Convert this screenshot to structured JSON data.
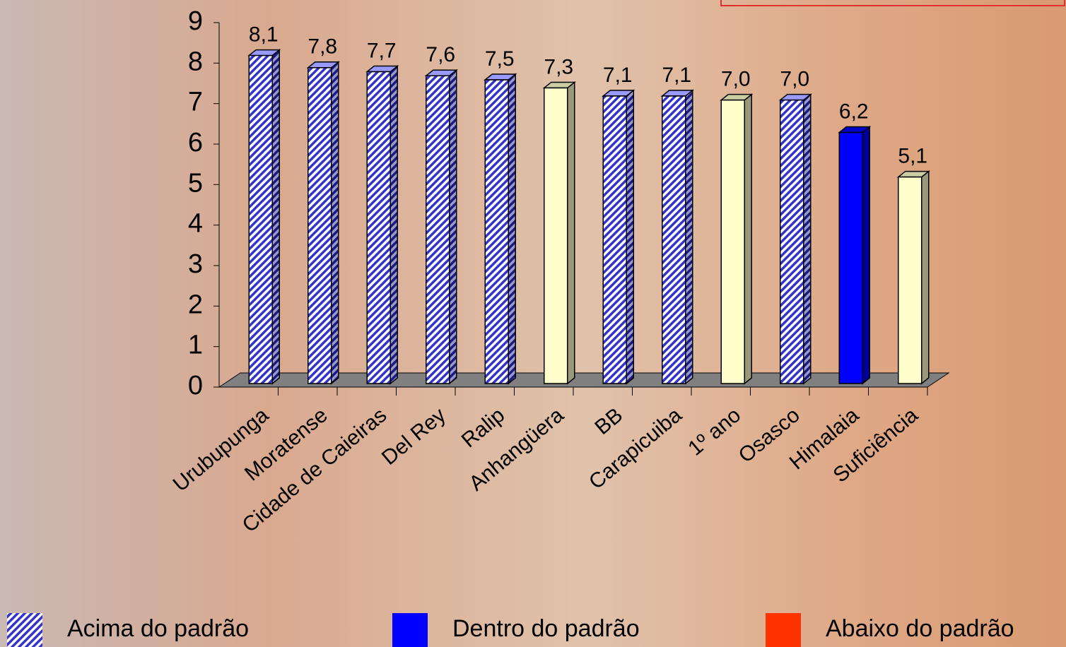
{
  "chart_data": {
    "type": "bar3d",
    "categories": [
      "Urubupunga",
      "Moratense",
      "Cidade de Caieiras",
      "Del Rey",
      "Ralip",
      "Anhangüera",
      "BB",
      "Carapicuiba",
      "1º ano",
      "Osasco",
      "Himalaia",
      "Suficiência"
    ],
    "values": [
      8.1,
      7.8,
      7.7,
      7.6,
      7.5,
      7.3,
      7.1,
      7.1,
      7.0,
      7.0,
      6.2,
      5.1
    ],
    "value_labels": [
      "8,1",
      "7,8",
      "7,7",
      "7,6",
      "7,5",
      "7,3",
      "7,1",
      "7,1",
      "7,0",
      "7,0",
      "6,2",
      "5,1"
    ],
    "colors": [
      "#9999ff",
      "#9999ff",
      "#9999ff",
      "#9999ff",
      "#9999ff",
      "#ffffcc",
      "#9999ff",
      "#9999ff",
      "#ffffcc",
      "#9999ff",
      "#0000ff",
      "#ffffcc"
    ],
    "hatched": [
      true,
      true,
      true,
      true,
      true,
      false,
      true,
      true,
      false,
      true,
      false,
      false
    ],
    "ylim": [
      0,
      9
    ],
    "yticks": [
      0,
      1,
      2,
      3,
      4,
      5,
      6,
      7,
      8,
      9
    ],
    "legend": [
      {
        "label": "Acima do padrão",
        "color": "#9999ff",
        "hatched": true
      },
      {
        "label": "Dentro do padrão",
        "color": "#0000ff",
        "hatched": false
      },
      {
        "label": "Abaixo do padrão",
        "color": "#ff3300",
        "hatched": false
      }
    ]
  }
}
